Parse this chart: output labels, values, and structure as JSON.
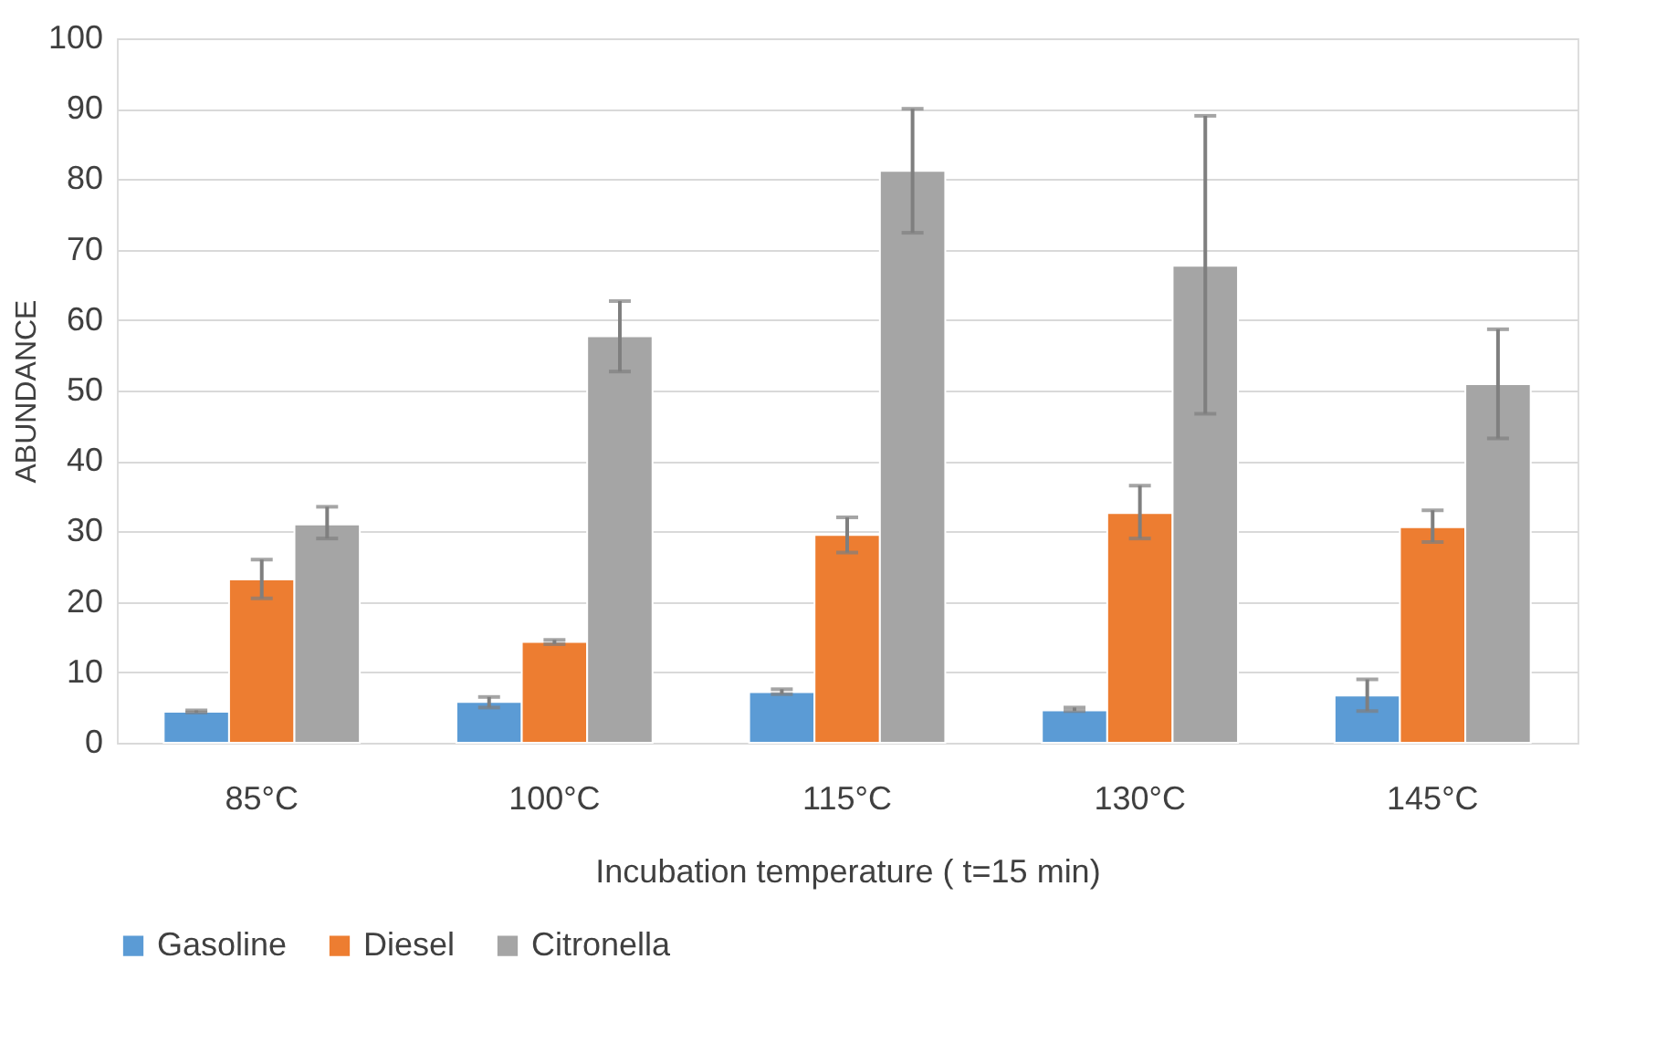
{
  "chart_data": {
    "type": "bar",
    "xlabel": "Incubation temperature ( t=15 min)",
    "ylabel": "ABUNDANCE",
    "categories": [
      "85°C",
      "100°C",
      "115°C",
      "130°C",
      "145°C"
    ],
    "series": [
      {
        "name": "Gasoline",
        "color": "#5b9bd5",
        "values": [
          4.4,
          5.8,
          7.2,
          4.6,
          6.7
        ],
        "errors": [
          [
            4.3,
            4.6
          ],
          [
            5.0,
            6.5
          ],
          [
            6.9,
            7.6
          ],
          [
            4.5,
            5.0
          ],
          [
            4.5,
            9.0
          ]
        ]
      },
      {
        "name": "Diesel",
        "color": "#ed7d31",
        "values": [
          23.2,
          14.3,
          29.5,
          32.6,
          30.6
        ],
        "errors": [
          [
            20.5,
            26.0
          ],
          [
            14.0,
            14.6
          ],
          [
            27.0,
            32.0
          ],
          [
            29.0,
            36.5
          ],
          [
            28.5,
            33.0
          ]
        ]
      },
      {
        "name": "Citronella",
        "color": "#a5a5a5",
        "values": [
          31.0,
          57.7,
          81.2,
          67.7,
          50.9
        ],
        "errors": [
          [
            29.0,
            33.5
          ],
          [
            52.7,
            62.7
          ],
          [
            72.4,
            90.0
          ],
          [
            46.7,
            89.0
          ],
          [
            43.2,
            58.7
          ]
        ]
      }
    ],
    "ylim": [
      0,
      100
    ],
    "yticks": [
      0,
      10,
      20,
      30,
      40,
      50,
      60,
      70,
      80,
      90,
      100
    ],
    "grid": "y",
    "legend": "bottom"
  }
}
